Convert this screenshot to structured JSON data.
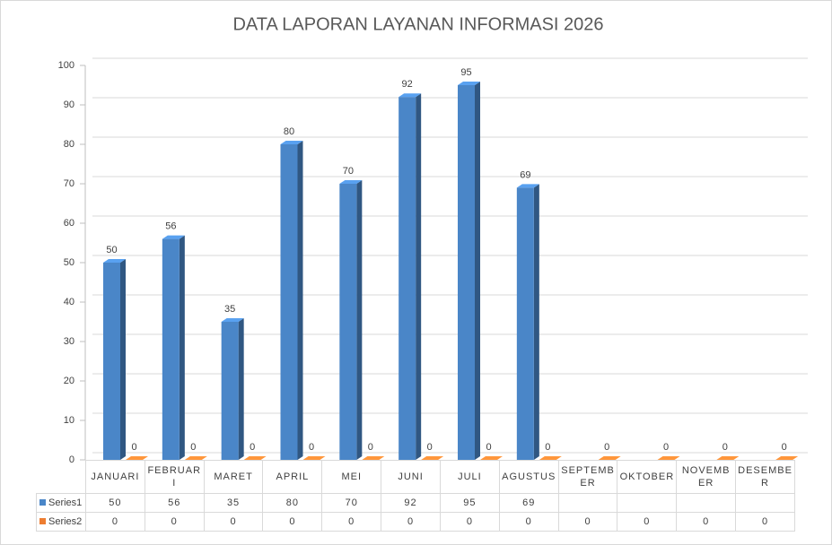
{
  "chart_data": {
    "type": "bar3d",
    "title": "DATA LAPORAN LAYANAN INFORMASI 2026",
    "categories": [
      "JANUARI",
      "FEBRUARI",
      "MARET",
      "APRIL",
      "MEI",
      "JUNI",
      "JULI",
      "AGUSTUS",
      "SEPTEMBER",
      "OKTOBER",
      "NOVEMBER",
      "DESEMBER"
    ],
    "series": [
      {
        "name": "Series1",
        "color": "#4a86c8",
        "values": [
          50,
          56,
          35,
          80,
          70,
          92,
          95,
          69,
          null,
          null,
          null,
          null
        ]
      },
      {
        "name": "Series2",
        "color": "#ed7d31",
        "values": [
          0,
          0,
          0,
          0,
          0,
          0,
          0,
          0,
          0,
          0,
          0,
          0
        ]
      }
    ],
    "ylim": [
      0,
      100
    ],
    "yticks": [
      0,
      10,
      20,
      30,
      40,
      50,
      60,
      70,
      80,
      90,
      100
    ],
    "grid": true,
    "data_table": true
  }
}
